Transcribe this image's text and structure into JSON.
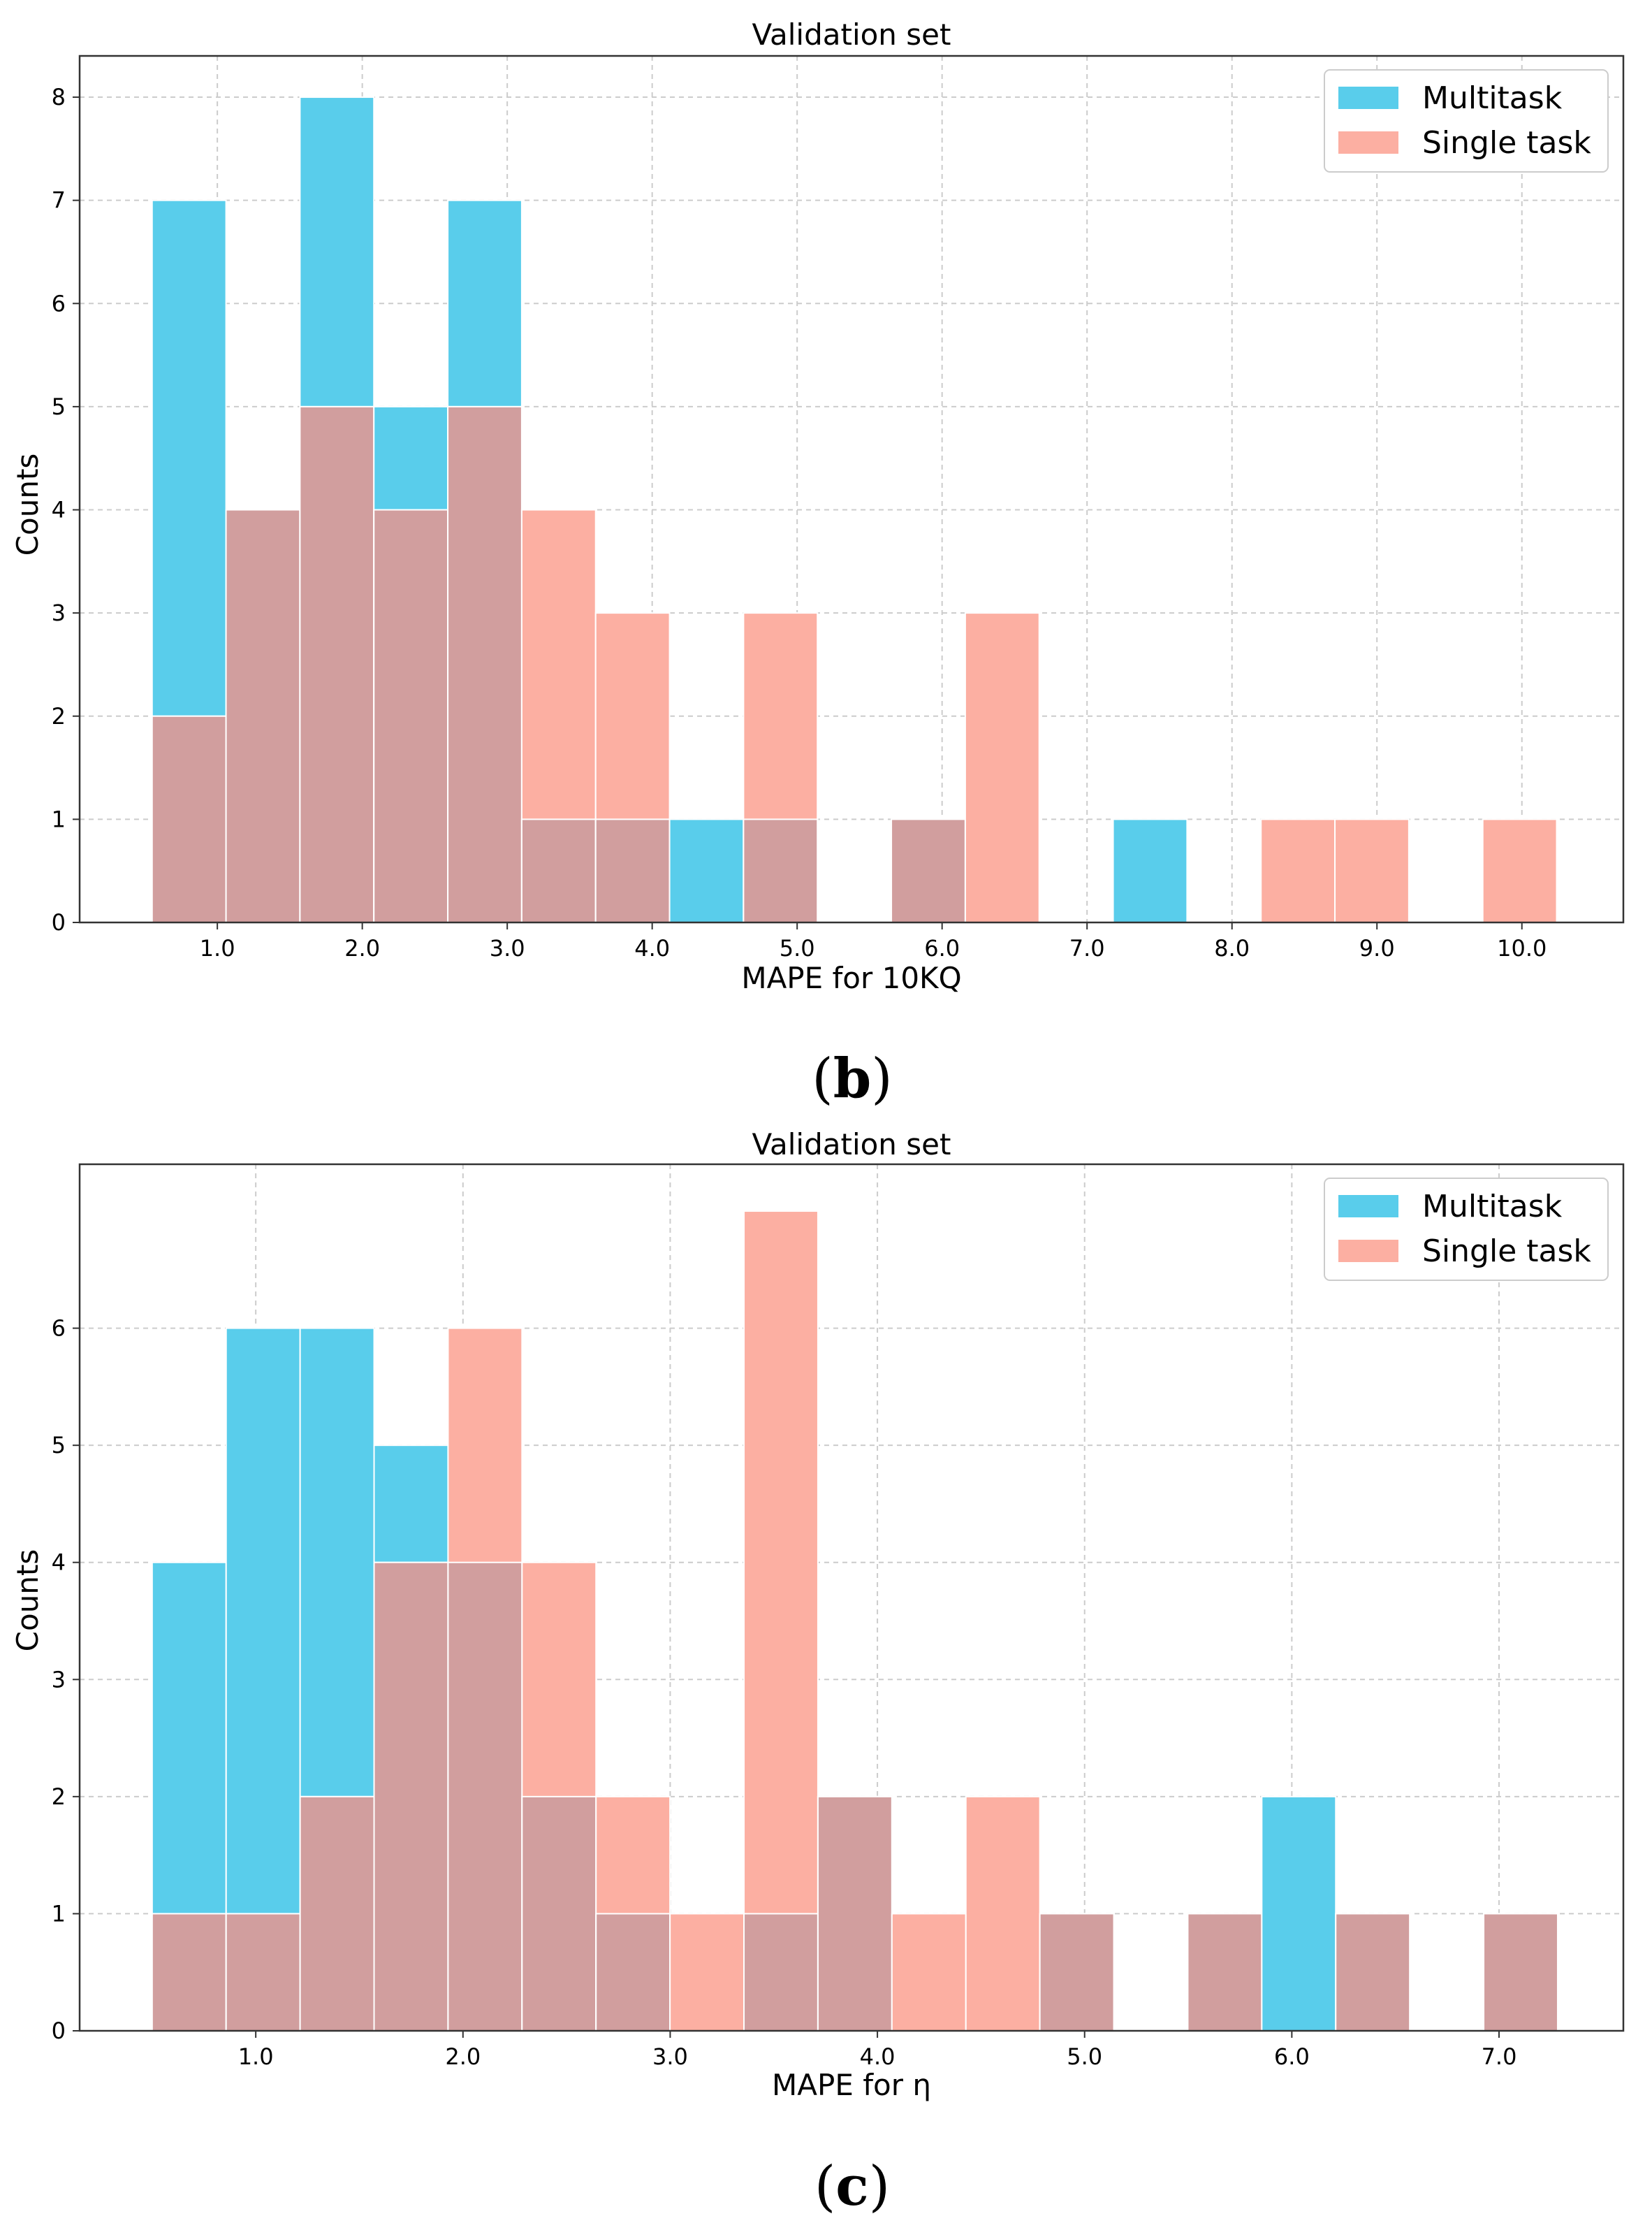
{
  "colors": {
    "multitask": "#59cdeb",
    "single": "#fcafa2",
    "overlap": "#d19e9e"
  },
  "chart_data": [
    {
      "type": "bar",
      "panel_caption_open": "(",
      "panel_caption_letter": "b",
      "panel_caption_close": ")",
      "title": "Validation set",
      "xlabel": "MAPE for 10KQ",
      "ylabel": "Counts",
      "xlim": [
        0.05,
        10.7
      ],
      "ylim": [
        0,
        8.4
      ],
      "bin_start": 0.55,
      "bin_width": 0.51,
      "xticks": [
        1.0,
        2.0,
        3.0,
        4.0,
        5.0,
        6.0,
        7.0,
        8.0,
        9.0,
        10.0
      ],
      "xtick_labels": [
        "1.0",
        "2.0",
        "3.0",
        "4.0",
        "5.0",
        "6.0",
        "7.0",
        "8.0",
        "9.0",
        "10.0"
      ],
      "yticks": [
        0,
        1,
        2,
        3,
        4,
        5,
        6,
        7,
        8
      ],
      "ytick_labels": [
        "0",
        "1",
        "2",
        "3",
        "4",
        "5",
        "6",
        "7",
        "8"
      ],
      "legend_position": "top-right",
      "series": [
        {
          "name": "Multitask",
          "values": [
            7,
            4,
            8,
            5,
            7,
            1,
            1,
            1,
            1,
            0,
            1,
            0,
            0,
            1,
            0,
            0,
            0,
            0,
            0,
            0
          ]
        },
        {
          "name": "Single task",
          "values": [
            2,
            4,
            5,
            4,
            5,
            4,
            3,
            0,
            3,
            0,
            1,
            3,
            0,
            0,
            0,
            1,
            1,
            0,
            1,
            0
          ]
        }
      ]
    },
    {
      "type": "bar",
      "panel_caption_open": "(",
      "panel_caption_letter": "c",
      "panel_caption_close": ")",
      "title": "Validation set",
      "xlabel": "MAPE for η",
      "ylabel": "Counts",
      "xlim": [
        0.15,
        7.6
      ],
      "ylim": [
        0,
        7.4
      ],
      "bin_start": 0.5,
      "bin_width": 0.357,
      "xticks": [
        1.0,
        2.0,
        3.0,
        4.0,
        5.0,
        6.0,
        7.0
      ],
      "xtick_labels": [
        "1.0",
        "2.0",
        "3.0",
        "4.0",
        "5.0",
        "6.0",
        "7.0"
      ],
      "yticks": [
        0,
        1,
        2,
        3,
        4,
        5,
        6
      ],
      "ytick_labels": [
        "0",
        "1",
        "2",
        "3",
        "4",
        "5",
        "6"
      ],
      "legend_position": "top-right",
      "series": [
        {
          "name": "Multitask",
          "values": [
            4,
            6,
            6,
            5,
            4,
            2,
            1,
            0,
            1,
            2,
            0,
            0,
            1,
            0,
            1,
            2,
            1,
            0,
            1
          ]
        },
        {
          "name": "Single task",
          "values": [
            1,
            1,
            2,
            4,
            6,
            4,
            2,
            1,
            7,
            2,
            1,
            2,
            1,
            0,
            1,
            0,
            1,
            0,
            1
          ]
        }
      ]
    }
  ]
}
